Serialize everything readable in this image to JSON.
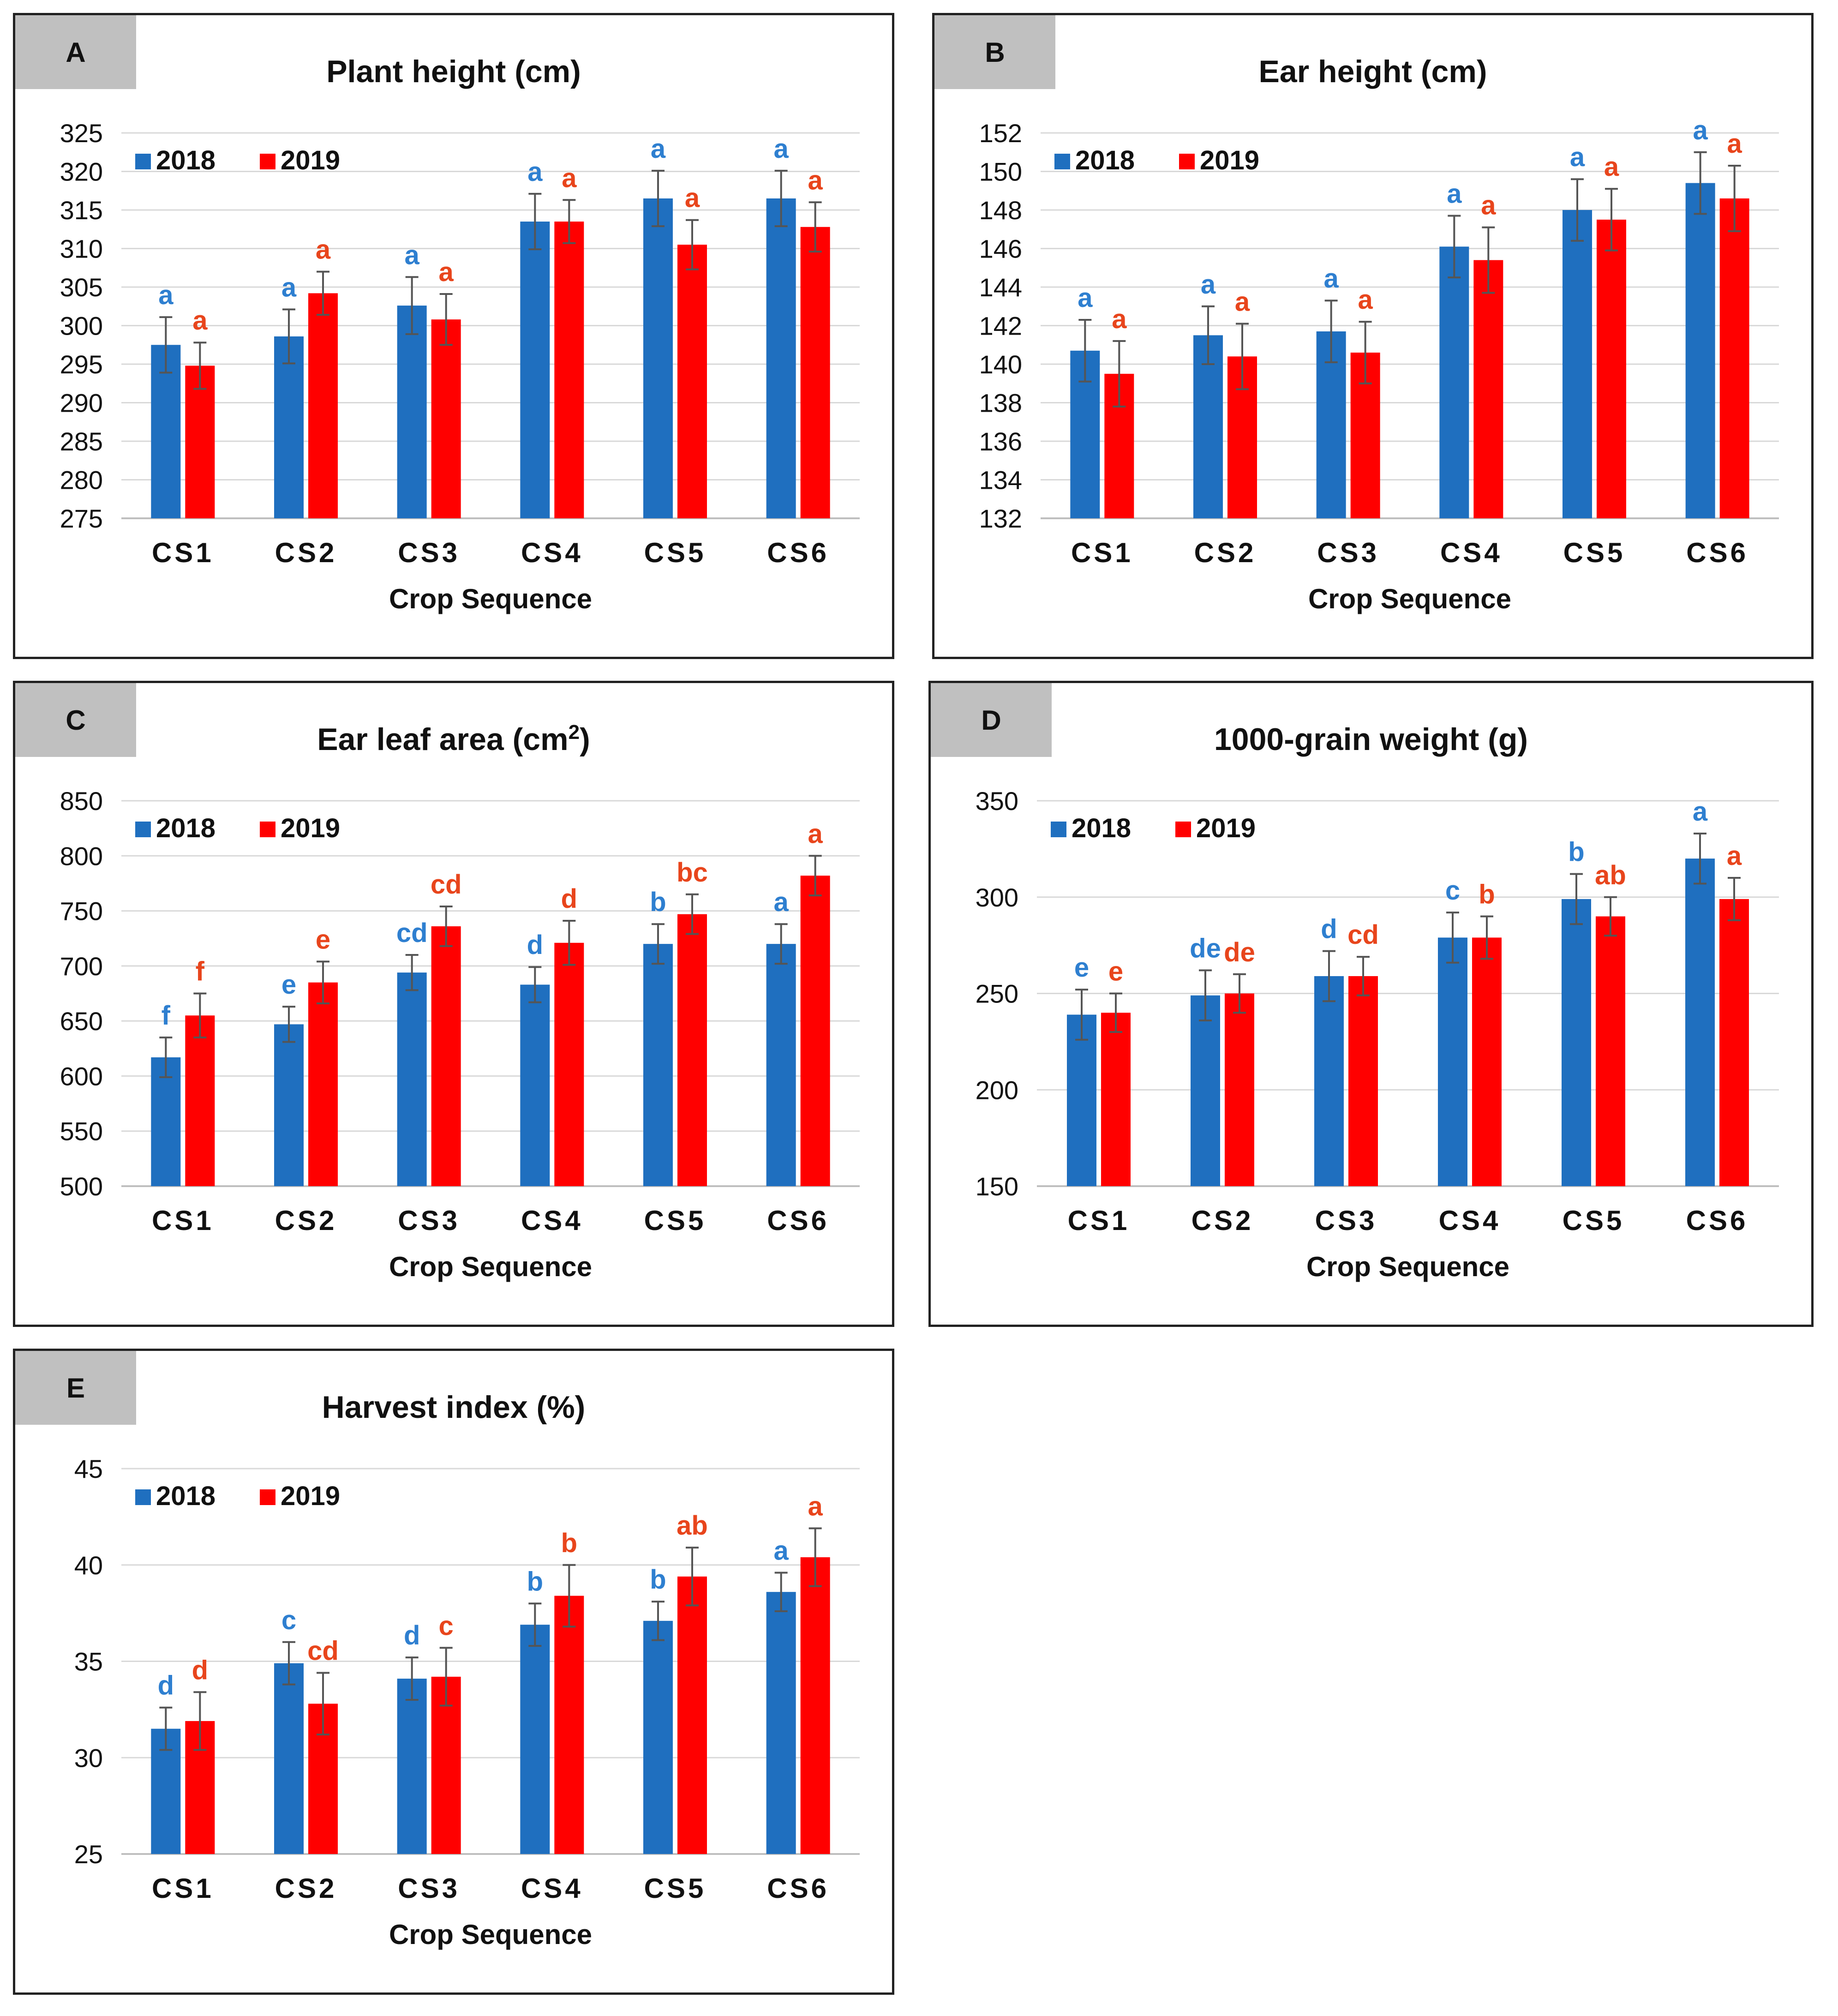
{
  "colors": {
    "y2018": "#1f6fbf",
    "y2019": "#ff0000",
    "letters2018": "#2e7fd0",
    "letters2019": "#e8451c"
  },
  "chart_data": [
    {
      "panel": "A",
      "type": "bar",
      "title": "Plant height (cm)",
      "xlabel": "Crop Sequence",
      "ylabel": "",
      "categories": [
        "CS1",
        "CS2",
        "CS3",
        "CS4",
        "CS5",
        "CS6"
      ],
      "ylim": [
        275,
        325
      ],
      "ticks": [
        275,
        280,
        285,
        290,
        295,
        300,
        305,
        310,
        315,
        320,
        325
      ],
      "legend_position": "top-left",
      "series": [
        {
          "name": "2018",
          "values": [
            297.5,
            298.6,
            302.6,
            313.5,
            316.5,
            316.5
          ],
          "errors": [
            3.6,
            3.5,
            3.7,
            3.6,
            3.6,
            3.6
          ],
          "letters": [
            "a",
            "a",
            "a",
            "a",
            "a",
            "a"
          ]
        },
        {
          "name": "2019",
          "values": [
            294.8,
            304.2,
            300.8,
            313.5,
            310.5,
            312.8
          ],
          "errors": [
            3.0,
            2.8,
            3.3,
            2.8,
            3.2,
            3.2
          ],
          "letters": [
            "a",
            "a",
            "a",
            "a",
            "a",
            "a"
          ]
        }
      ]
    },
    {
      "panel": "B",
      "type": "bar",
      "title": "Ear height (cm)",
      "xlabel": "Crop Sequence",
      "ylabel": "",
      "categories": [
        "CS1",
        "CS2",
        "CS3",
        "CS4",
        "CS5",
        "CS6"
      ],
      "ylim": [
        132,
        152
      ],
      "ticks": [
        132,
        134,
        136,
        138,
        140,
        142,
        144,
        146,
        148,
        150,
        152
      ],
      "legend_position": "top-left",
      "series": [
        {
          "name": "2018",
          "values": [
            140.7,
            141.5,
            141.7,
            146.1,
            148.0,
            149.4
          ],
          "errors": [
            1.6,
            1.5,
            1.6,
            1.6,
            1.6,
            1.6
          ],
          "letters": [
            "a",
            "a",
            "a",
            "a",
            "a",
            "a"
          ]
        },
        {
          "name": "2019",
          "values": [
            139.5,
            140.4,
            140.6,
            145.4,
            147.5,
            148.6
          ],
          "errors": [
            1.7,
            1.7,
            1.6,
            1.7,
            1.6,
            1.7
          ],
          "letters": [
            "a",
            "a",
            "a",
            "a",
            "a",
            "a"
          ]
        }
      ]
    },
    {
      "panel": "C",
      "type": "bar",
      "title": "Ear leaf area (cm2)",
      "xlabel": "Crop Sequence",
      "ylabel": "",
      "categories": [
        "CS1",
        "CS2",
        "CS3",
        "CS4",
        "CS5",
        "CS6"
      ],
      "ylim": [
        500,
        850
      ],
      "ticks": [
        500,
        550,
        600,
        650,
        700,
        750,
        800,
        850
      ],
      "legend_position": "top-left",
      "series": [
        {
          "name": "2018",
          "values": [
            617,
            647,
            694,
            683,
            720,
            720
          ],
          "errors": [
            18,
            16,
            16,
            16,
            18,
            18
          ],
          "letters": [
            "f",
            "e",
            "cd",
            "d",
            "b",
            "a"
          ]
        },
        {
          "name": "2019",
          "values": [
            655,
            685,
            736,
            721,
            747,
            782
          ],
          "errors": [
            20,
            19,
            18,
            20,
            18,
            18
          ],
          "letters": [
            "f",
            "e",
            "cd",
            "d",
            "bc",
            "a"
          ]
        }
      ]
    },
    {
      "panel": "D",
      "type": "bar",
      "title": "1000-grain weight (g)",
      "xlabel": "Crop Sequence",
      "ylabel": "",
      "categories": [
        "CS1",
        "CS2",
        "CS3",
        "CS4",
        "CS5",
        "CS6"
      ],
      "ylim": [
        150,
        350
      ],
      "ticks": [
        150,
        200,
        250,
        300,
        350
      ],
      "legend_position": "top-left",
      "series": [
        {
          "name": "2018",
          "values": [
            239,
            249,
            259,
            279,
            299,
            320
          ],
          "errors": [
            13,
            13,
            13,
            13,
            13,
            13
          ],
          "letters": [
            "e",
            "de",
            "d",
            "c",
            "b",
            "a"
          ]
        },
        {
          "name": "2019",
          "values": [
            240,
            250,
            259,
            279,
            290,
            299
          ],
          "errors": [
            10,
            10,
            10,
            11,
            10,
            11
          ],
          "letters": [
            "e",
            "de",
            "cd",
            "b",
            "ab",
            "a"
          ]
        }
      ]
    },
    {
      "panel": "E",
      "type": "bar",
      "title": "Harvest index (%)",
      "xlabel": "Crop Sequence",
      "ylabel": "",
      "categories": [
        "CS1",
        "CS2",
        "CS3",
        "CS4",
        "CS5",
        "CS6"
      ],
      "ylim": [
        25,
        45
      ],
      "ticks": [
        25,
        30,
        35,
        40,
        45
      ],
      "legend_position": "top-left",
      "series": [
        {
          "name": "2018",
          "values": [
            31.5,
            34.9,
            34.1,
            36.9,
            37.1,
            38.6
          ],
          "errors": [
            1.1,
            1.1,
            1.1,
            1.1,
            1.0,
            1.0
          ],
          "letters": [
            "d",
            "c",
            "d",
            "b",
            "b",
            "a"
          ]
        },
        {
          "name": "2019",
          "values": [
            31.9,
            32.8,
            34.2,
            38.4,
            39.4,
            40.4
          ],
          "errors": [
            1.5,
            1.6,
            1.5,
            1.6,
            1.5,
            1.5
          ],
          "letters": [
            "d",
            "cd",
            "c",
            "b",
            "ab",
            "a"
          ]
        }
      ]
    }
  ]
}
